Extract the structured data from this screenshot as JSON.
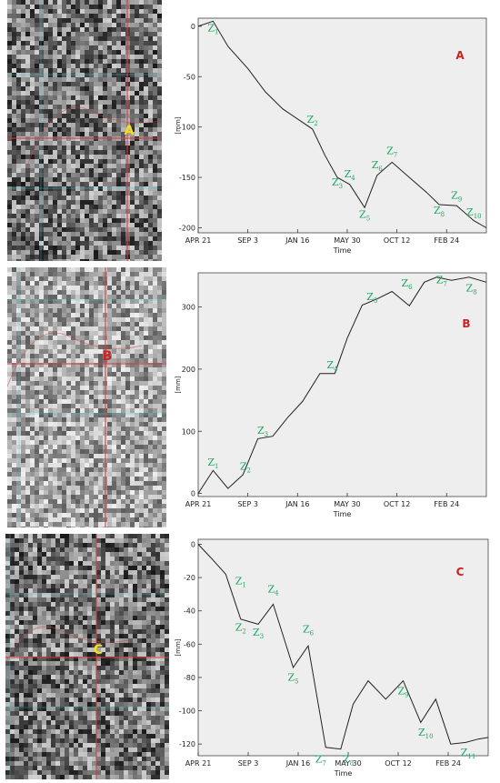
{
  "colors": {
    "chart_bg": "#eeeeee",
    "line": "#222222",
    "label_green": "#1aa860",
    "letter_red": "#cc2222",
    "marker_yellow": "#f2e21a",
    "grid_red": "#d04040",
    "grid_cyan": "#40c8d0"
  },
  "panels": [
    {
      "letter": "A",
      "marker_letter": "A",
      "marker_color": "yellow",
      "photo_style": "dark-texture"
    },
    {
      "letter": "B",
      "marker_letter": "B",
      "marker_color": "red",
      "photo_style": "light-texture"
    },
    {
      "letter": "C",
      "marker_letter": "C",
      "marker_color": "yellow",
      "photo_style": "dark-texture"
    }
  ],
  "chart_data": [
    {
      "type": "line",
      "panel_label": "A",
      "xlabel": "Time",
      "ylabel": "[mm]",
      "xticks": [
        "APR 21",
        "SEP 3",
        "JAN 16",
        "MAY 30",
        "OCT 12",
        "FEB 24"
      ],
      "xtick_positions": [
        0,
        1,
        2,
        3,
        4,
        5
      ],
      "xlim": [
        0,
        5.8
      ],
      "ylim": [
        -205,
        8
      ],
      "yticks": [
        0,
        -50,
        -100,
        -150,
        -200
      ],
      "x": [
        0,
        0.3,
        0.6,
        1.0,
        1.35,
        1.7,
        2.0,
        2.3,
        2.55,
        2.8,
        3.05,
        3.35,
        3.6,
        3.9,
        4.25,
        4.6,
        4.85,
        5.2,
        5.55,
        5.8
      ],
      "y": [
        0,
        5,
        -20,
        -42,
        -65,
        -82,
        -92,
        -102,
        -128,
        -150,
        -157,
        -180,
        -148,
        -135,
        -150,
        -165,
        -177,
        -178,
        -193,
        -200
      ],
      "point_labels": [
        {
          "text": "Z",
          "sub": "1",
          "x": 0.3,
          "y": -5
        },
        {
          "text": "Z",
          "sub": "2",
          "x": 2.3,
          "y": -96
        },
        {
          "text": "Z",
          "sub": "3",
          "x": 2.8,
          "y": -158
        },
        {
          "text": "Z",
          "sub": "4",
          "x": 3.05,
          "y": -150
        },
        {
          "text": "Z",
          "sub": "5",
          "x": 3.35,
          "y": -190
        },
        {
          "text": "Z",
          "sub": "6",
          "x": 3.6,
          "y": -141
        },
        {
          "text": "Z",
          "sub": "7",
          "x": 3.9,
          "y": -127
        },
        {
          "text": "Z",
          "sub": "8",
          "x": 4.85,
          "y": -186
        },
        {
          "text": "Z",
          "sub": "9",
          "x": 5.2,
          "y": -171
        },
        {
          "text": "Z",
          "sub": "10",
          "x": 5.55,
          "y": -188
        }
      ]
    },
    {
      "type": "line",
      "panel_label": "B",
      "xlabel": "Time",
      "ylabel": "[mm]",
      "xticks": [
        "APR 21",
        "SEP 3",
        "JAN 16",
        "MAY 30",
        "OCT 12",
        "FEB 24"
      ],
      "xtick_positions": [
        0,
        1,
        2,
        3,
        4,
        5
      ],
      "xlim": [
        0,
        5.8
      ],
      "ylim": [
        -5,
        355
      ],
      "yticks": [
        0,
        100,
        200,
        300
      ],
      "x": [
        0,
        0.3,
        0.6,
        0.9,
        1.2,
        1.5,
        1.8,
        2.1,
        2.45,
        2.75,
        3.0,
        3.3,
        3.6,
        3.9,
        4.25,
        4.55,
        4.8,
        5.1,
        5.45,
        5.8
      ],
      "y": [
        0,
        37,
        8,
        30,
        88,
        92,
        122,
        148,
        193,
        193,
        250,
        303,
        313,
        325,
        302,
        340,
        348,
        343,
        348,
        340
      ],
      "point_labels": [
        {
          "text": "Z",
          "sub": "1",
          "x": 0.3,
          "y": 45
        },
        {
          "text": "Z",
          "sub": "2",
          "x": 0.95,
          "y": 38
        },
        {
          "text": "Z",
          "sub": "3",
          "x": 1.3,
          "y": 96
        },
        {
          "text": "Z",
          "sub": "4",
          "x": 2.7,
          "y": 201
        },
        {
          "text": "Z",
          "sub": "5",
          "x": 3.5,
          "y": 311
        },
        {
          "text": "Z",
          "sub": "6",
          "x": 4.2,
          "y": 333
        },
        {
          "text": "Z",
          "sub": "7",
          "x": 4.9,
          "y": 338
        },
        {
          "text": "Z",
          "sub": "8",
          "x": 5.5,
          "y": 325
        }
      ]
    },
    {
      "type": "line",
      "panel_label": "C",
      "xlabel": "Time",
      "ylabel": "[mm]",
      "xticks": [
        "APR 21",
        "SEP 3",
        "JAN 16",
        "MAY 30",
        "OCT 12",
        "FEB 24"
      ],
      "xtick_positions": [
        0,
        1,
        2,
        3,
        4,
        5
      ],
      "xlim": [
        0,
        5.8
      ],
      "ylim": [
        -127,
        3
      ],
      "yticks": [
        0,
        -20,
        -40,
        -60,
        -80,
        -100,
        -120
      ],
      "x": [
        0,
        0.25,
        0.55,
        0.85,
        1.2,
        1.5,
        1.9,
        2.2,
        2.55,
        2.85,
        3.1,
        3.4,
        3.75,
        4.1,
        4.45,
        4.75,
        5.05,
        5.35,
        5.6,
        5.8
      ],
      "y": [
        0,
        -8,
        -18,
        -45,
        -48,
        -36,
        -74,
        -61,
        -122,
        -123,
        -96,
        -82,
        -93,
        -82,
        -107,
        -93,
        -120,
        -119,
        -117,
        -116
      ],
      "point_labels": [
        {
          "text": "Z",
          "sub": "1",
          "x": 0.85,
          "y": -24
        },
        {
          "text": "Z",
          "sub": "2",
          "x": 0.85,
          "y": -52
        },
        {
          "text": "Z",
          "sub": "3",
          "x": 1.2,
          "y": -55
        },
        {
          "text": "Z",
          "sub": "4",
          "x": 1.5,
          "y": -29
        },
        {
          "text": "Z",
          "sub": "5",
          "x": 1.9,
          "y": -82
        },
        {
          "text": "Z",
          "sub": "6",
          "x": 2.2,
          "y": -53
        },
        {
          "text": "Z",
          "sub": "7",
          "x": 2.45,
          "y": -131
        },
        {
          "text": "Z",
          "sub": "8",
          "x": 3.0,
          "y": -131
        },
        {
          "text": "Z",
          "sub": "9",
          "x": 4.1,
          "y": -90
        },
        {
          "text": "Z",
          "sub": "10",
          "x": 4.55,
          "y": -115
        },
        {
          "text": "Z",
          "sub": "11",
          "x": 5.4,
          "y": -127
        }
      ]
    }
  ]
}
